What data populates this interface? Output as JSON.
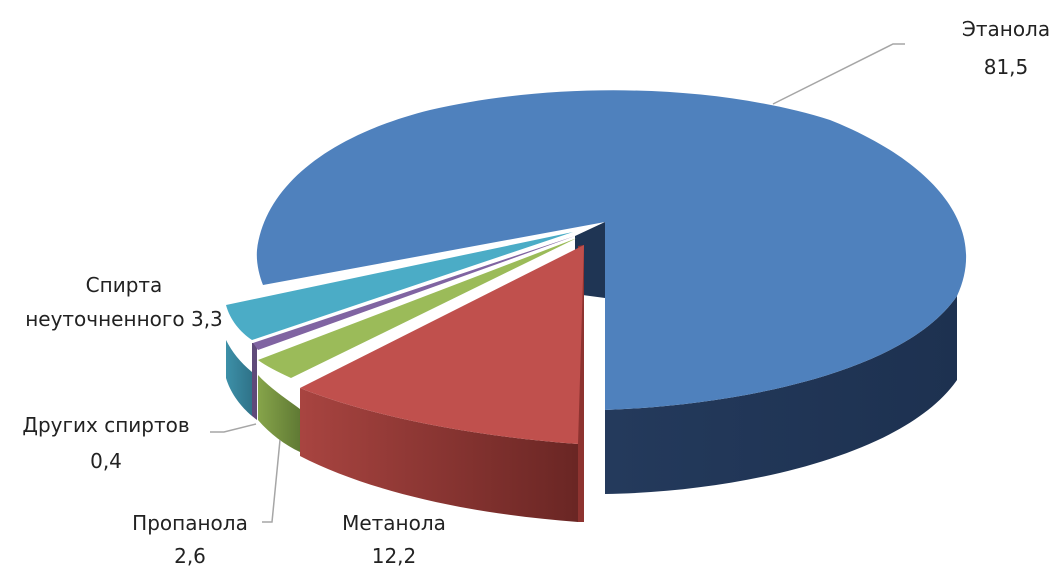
{
  "chart_data": {
    "type": "pie",
    "title": "",
    "slices": [
      {
        "name": "Этанола",
        "value": 81.5,
        "value_label": "81,5",
        "color": "#4f81bd"
      },
      {
        "name": "Метанола",
        "value": 12.2,
        "value_label": "12,2",
        "color": "#c0504d"
      },
      {
        "name": "Пропанола",
        "value": 2.6,
        "value_label": "2,6",
        "color": "#9bbb59"
      },
      {
        "name": "Других спиртов",
        "value": 0.4,
        "value_label": "0,4",
        "color": "#8064a2"
      },
      {
        "name": "Спирта неуточненного",
        "value": 3.3,
        "value_label": "3,3",
        "color": "#4bacc6"
      }
    ],
    "labels": {
      "ethanol": {
        "line1": "Этанола",
        "line2": "81,5"
      },
      "methanol": {
        "line1": "Метанола",
        "line2": "12,2"
      },
      "propanol": {
        "line1": "Пропанола",
        "line2": "2,6"
      },
      "other": {
        "line1": "Других спиртов",
        "line2": "0,4"
      },
      "unspecified": {
        "line1": "Спирта",
        "line2": "неуточненного 3,3"
      }
    },
    "legend": "none",
    "style": "3d-exploded"
  }
}
